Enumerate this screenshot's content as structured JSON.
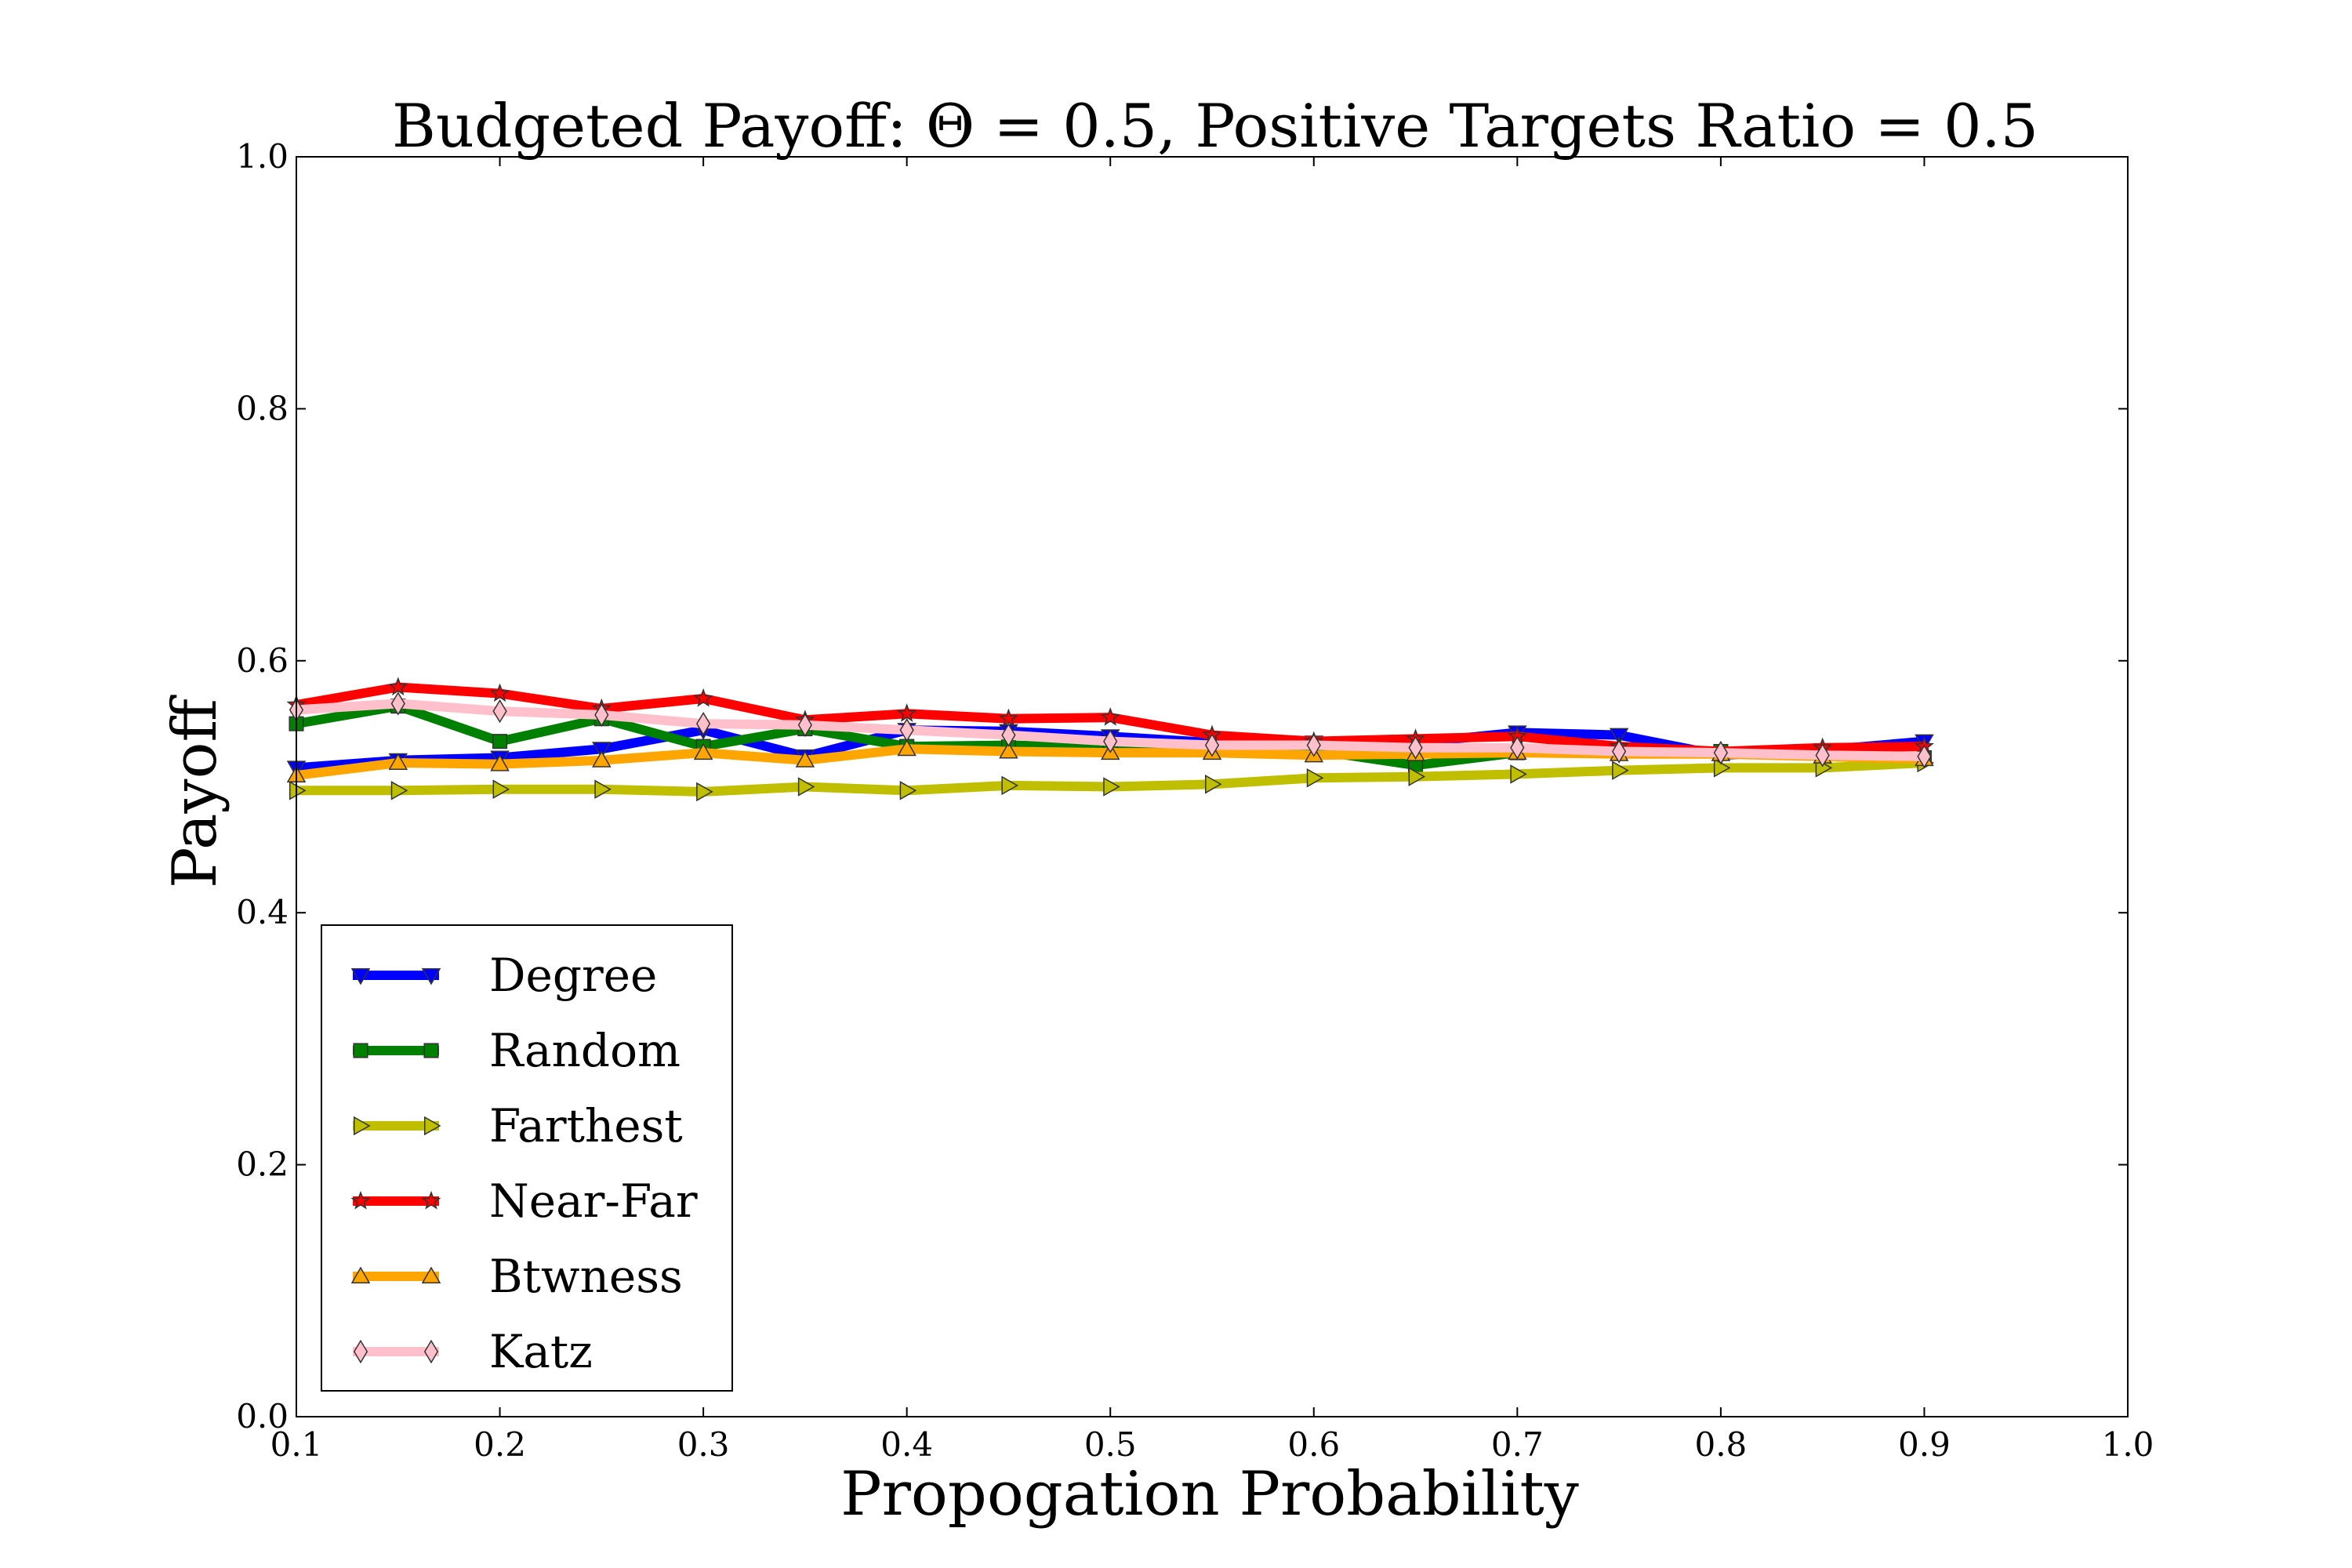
{
  "chart_data": {
    "type": "line",
    "title": "Budgeted Payoff: Θ = 0.5, Positive Targets Ratio = 0.5",
    "xlabel": "Propogation Probability",
    "ylabel": "Payoff",
    "xlim": [
      0.1,
      1.0
    ],
    "ylim": [
      0.0,
      1.0
    ],
    "xticks": [
      "0.1",
      "0.2",
      "0.3",
      "0.4",
      "0.5",
      "0.6",
      "0.7",
      "0.8",
      "0.9",
      "1.0"
    ],
    "yticks": [
      "0.0",
      "0.2",
      "0.4",
      "0.6",
      "0.8",
      "1.0"
    ],
    "grid": false,
    "legend_position": "lower-left",
    "x": [
      0.1,
      0.15,
      0.2,
      0.25,
      0.3,
      0.35,
      0.4,
      0.45,
      0.5,
      0.55,
      0.6,
      0.65,
      0.7,
      0.75,
      0.8,
      0.85,
      0.9
    ],
    "series": [
      {
        "name": "Degree",
        "color": "#0000ff",
        "marker": "triangle-down",
        "values": [
          0.515,
          0.521,
          0.523,
          0.53,
          0.545,
          0.524,
          0.545,
          0.544,
          0.54,
          0.535,
          0.535,
          0.535,
          0.543,
          0.541,
          0.525,
          0.529,
          0.536
        ]
      },
      {
        "name": "Random",
        "color": "#008000",
        "marker": "square",
        "values": [
          0.55,
          0.564,
          0.536,
          0.554,
          0.532,
          0.546,
          0.532,
          0.533,
          0.531,
          0.529,
          0.529,
          0.517,
          0.527,
          0.529,
          0.528,
          0.527,
          0.523
        ]
      },
      {
        "name": "Farthest",
        "color": "#bfbf00",
        "marker": "triangle-right",
        "values": [
          0.497,
          0.497,
          0.498,
          0.498,
          0.496,
          0.5,
          0.497,
          0.501,
          0.5,
          0.502,
          0.507,
          0.508,
          0.51,
          0.513,
          0.515,
          0.515,
          0.519
        ]
      },
      {
        "name": "Near-Far",
        "color": "#ff0000",
        "marker": "star",
        "values": [
          0.565,
          0.579,
          0.574,
          0.562,
          0.57,
          0.553,
          0.558,
          0.554,
          0.555,
          0.541,
          0.536,
          0.538,
          0.54,
          0.532,
          0.528,
          0.531,
          0.532
        ]
      },
      {
        "name": "Btwness",
        "color": "#ffa500",
        "marker": "triangle-up",
        "values": [
          0.509,
          0.519,
          0.518,
          0.521,
          0.527,
          0.521,
          0.53,
          0.528,
          0.527,
          0.527,
          0.525,
          0.526,
          0.527,
          0.526,
          0.526,
          0.524,
          0.522
        ]
      },
      {
        "name": "Katz",
        "color": "#ffc0cb",
        "marker": "diamond",
        "values": [
          0.561,
          0.566,
          0.56,
          0.557,
          0.55,
          0.549,
          0.545,
          0.541,
          0.536,
          0.533,
          0.533,
          0.531,
          0.531,
          0.528,
          0.527,
          0.525,
          0.524
        ]
      }
    ]
  }
}
